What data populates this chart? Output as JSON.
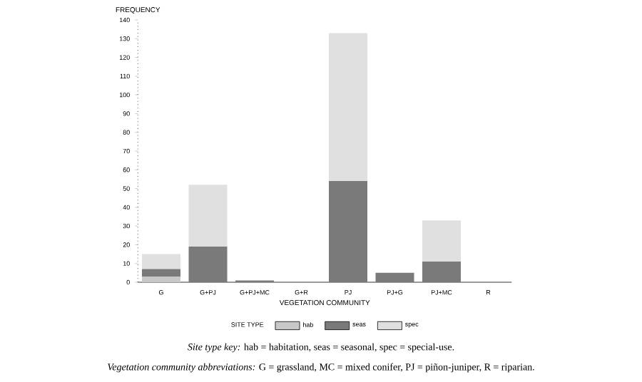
{
  "chart_data": {
    "type": "bar",
    "stacked": true,
    "categories": [
      "G",
      "G+PJ",
      "G+PJ+MC",
      "G+R",
      "PJ",
      "PJ+G",
      "PJ+MC",
      "R"
    ],
    "series": [
      {
        "name": "hab",
        "color": "#c8c8c8",
        "values": [
          3,
          0,
          0,
          0,
          0,
          0,
          0,
          0
        ]
      },
      {
        "name": "seas",
        "color": "#7a7a7a",
        "values": [
          4,
          19,
          1,
          0,
          54,
          5,
          11,
          0
        ]
      },
      {
        "name": "spec",
        "color": "#e0e0e0",
        "values": [
          8,
          33,
          0,
          0,
          79,
          0,
          22,
          0
        ]
      }
    ],
    "ylim": [
      0,
      140
    ],
    "yticks": [
      0,
      10,
      20,
      30,
      40,
      50,
      60,
      70,
      80,
      90,
      100,
      110,
      120,
      130,
      140
    ],
    "ylabel": "FREQUENCY",
    "xlabel": "VEGETATION COMMUNITY",
    "legend_title": "SITE TYPE",
    "legend": "bottom",
    "annotations": [
      "*Site type key:* hab = habitation, seas = seasonal, spec = special-use.",
      "*Vegetation community abbreviations:* G = grassland, MC = mixed conifer, PJ = piñon-juniper, R = riparian."
    ]
  }
}
